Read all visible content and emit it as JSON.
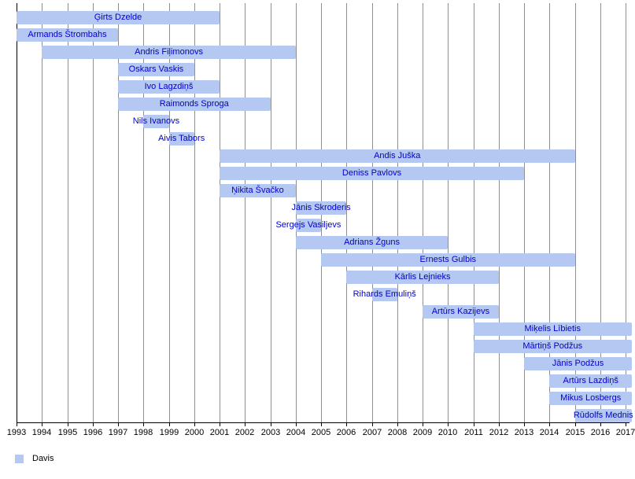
{
  "chart_data": {
    "type": "bar",
    "subtype": "gantt-timeline",
    "title": "",
    "xlabel": "",
    "ylabel": "",
    "grid": true,
    "legend_position": "bottom-left",
    "x_axis": {
      "start_year": 1993,
      "end_year": 2017,
      "tick_labels": [
        "1993",
        "1994",
        "1995",
        "1996",
        "1997",
        "1998",
        "1999",
        "2000",
        "2001",
        "2002",
        "2003",
        "2004",
        "2005",
        "2006",
        "2007",
        "2008",
        "2009",
        "2010",
        "2011",
        "2012",
        "2013",
        "2014",
        "2015",
        "2016",
        "2017"
      ]
    },
    "series": [
      {
        "name": "Ģirts Dzelde",
        "start": 1993,
        "end": 2001,
        "open_ended": false
      },
      {
        "name": "Armands Štrombahs",
        "start": 1993,
        "end": 1997,
        "open_ended": false
      },
      {
        "name": "Andris Fiļimonovs",
        "start": 1994,
        "end": 2004,
        "open_ended": false
      },
      {
        "name": "Oskars Vaskis",
        "start": 1997,
        "end": 2000,
        "open_ended": false
      },
      {
        "name": "Ivo Lagzdiņš",
        "start": 1997,
        "end": 2001,
        "open_ended": false
      },
      {
        "name": "Raimonds Sproga",
        "start": 1997,
        "end": 2003,
        "open_ended": false
      },
      {
        "name": "Nils Ivanovs",
        "start": 1998,
        "end": 1999,
        "open_ended": false
      },
      {
        "name": "Aivis Tabors",
        "start": 1999,
        "end": 2000,
        "open_ended": false
      },
      {
        "name": "Andis Juška",
        "start": 2001,
        "end": 2015,
        "open_ended": false
      },
      {
        "name": "Deniss Pavlovs",
        "start": 2001,
        "end": 2013,
        "open_ended": false
      },
      {
        "name": "Ņikita Švačko",
        "start": 2001,
        "end": 2004,
        "open_ended": false
      },
      {
        "name": "Jānis Skroderis",
        "start": 2004,
        "end": 2006,
        "open_ended": false
      },
      {
        "name": "Sergejs Vasiljevs",
        "start": 2004,
        "end": 2005,
        "open_ended": false
      },
      {
        "name": "Adrians Žguns",
        "start": 2004,
        "end": 2010,
        "open_ended": false
      },
      {
        "name": "Ernests Gulbis",
        "start": 2005,
        "end": 2015,
        "open_ended": false
      },
      {
        "name": "Kārlis Lejnieks",
        "start": 2006,
        "end": 2012,
        "open_ended": false
      },
      {
        "name": "Rihards Emuliņš",
        "start": 2007,
        "end": 2008,
        "open_ended": false
      },
      {
        "name": "Artūrs Kazijevs",
        "start": 2009,
        "end": 2012,
        "open_ended": false
      },
      {
        "name": "Miķelis Lībietis",
        "start": 2011,
        "end": null,
        "open_ended": true
      },
      {
        "name": "Mārtiņš Podžus",
        "start": 2011,
        "end": null,
        "open_ended": true
      },
      {
        "name": "Jānis Podžus",
        "start": 2013,
        "end": null,
        "open_ended": true
      },
      {
        "name": "Artūrs Lazdiņš",
        "start": 2014,
        "end": null,
        "open_ended": true
      },
      {
        "name": "Mikus Losbergs",
        "start": 2014,
        "end": null,
        "open_ended": true
      },
      {
        "name": "Rūdolfs Mednis",
        "start": 2015,
        "end": null,
        "open_ended": true
      }
    ],
    "legend": [
      {
        "label": "Davis",
        "color": "#b5c8f2"
      }
    ],
    "colors": {
      "bar_fill": "#b5c8f2",
      "bar_label": "#0000cc",
      "gridline": "#8f8f8f",
      "axis": "#000000"
    }
  }
}
